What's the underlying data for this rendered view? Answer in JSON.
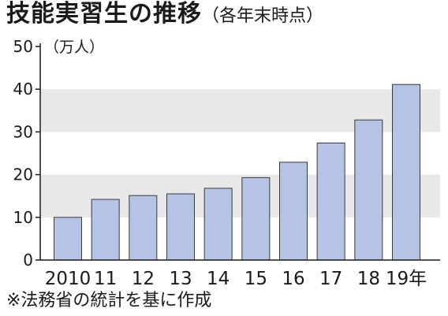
{
  "title": "技能実習生の推移",
  "subtitle": "（各年末時点）",
  "source_note": "※法務省の統計を基に作成",
  "chart_data": {
    "type": "bar",
    "title": "技能実習生の推移",
    "subtitle": "（各年末時点）",
    "unit_label": "（万人）",
    "categories": [
      "2010",
      "11",
      "12",
      "13",
      "14",
      "15",
      "16",
      "17",
      "18",
      "19年"
    ],
    "values": [
      10.0,
      14.2,
      15.1,
      15.5,
      16.8,
      19.3,
      22.9,
      27.4,
      32.8,
      41.1
    ],
    "yticks": [
      "0",
      "10",
      "20",
      "30",
      "40",
      "50"
    ],
    "ylim": [
      0,
      50
    ],
    "bar_color": "#b5c3e6",
    "band_color": "#e8e8e8"
  }
}
